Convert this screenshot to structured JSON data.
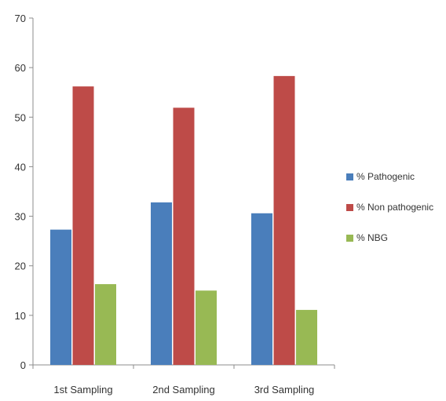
{
  "chart_data": {
    "type": "bar",
    "categories": [
      "1st Sampling",
      "2nd Sampling",
      "3rd Sampling"
    ],
    "series": [
      {
        "name": "% Pathogenic",
        "values": [
          27.3,
          32.8,
          30.6
        ],
        "color": "#4a7ebb"
      },
      {
        "name": "% Non pathogenic",
        "values": [
          56.2,
          51.9,
          58.3
        ],
        "color": "#be4b48"
      },
      {
        "name": "% NBG",
        "values": [
          16.3,
          15.0,
          11.1
        ],
        "color": "#98b954"
      }
    ],
    "title": "",
    "xlabel": "",
    "ylabel": "",
    "ylim": [
      0,
      70
    ],
    "yticks": [
      0,
      10,
      20,
      30,
      40,
      50,
      60,
      70
    ],
    "grid": false,
    "legend_position": "right"
  }
}
